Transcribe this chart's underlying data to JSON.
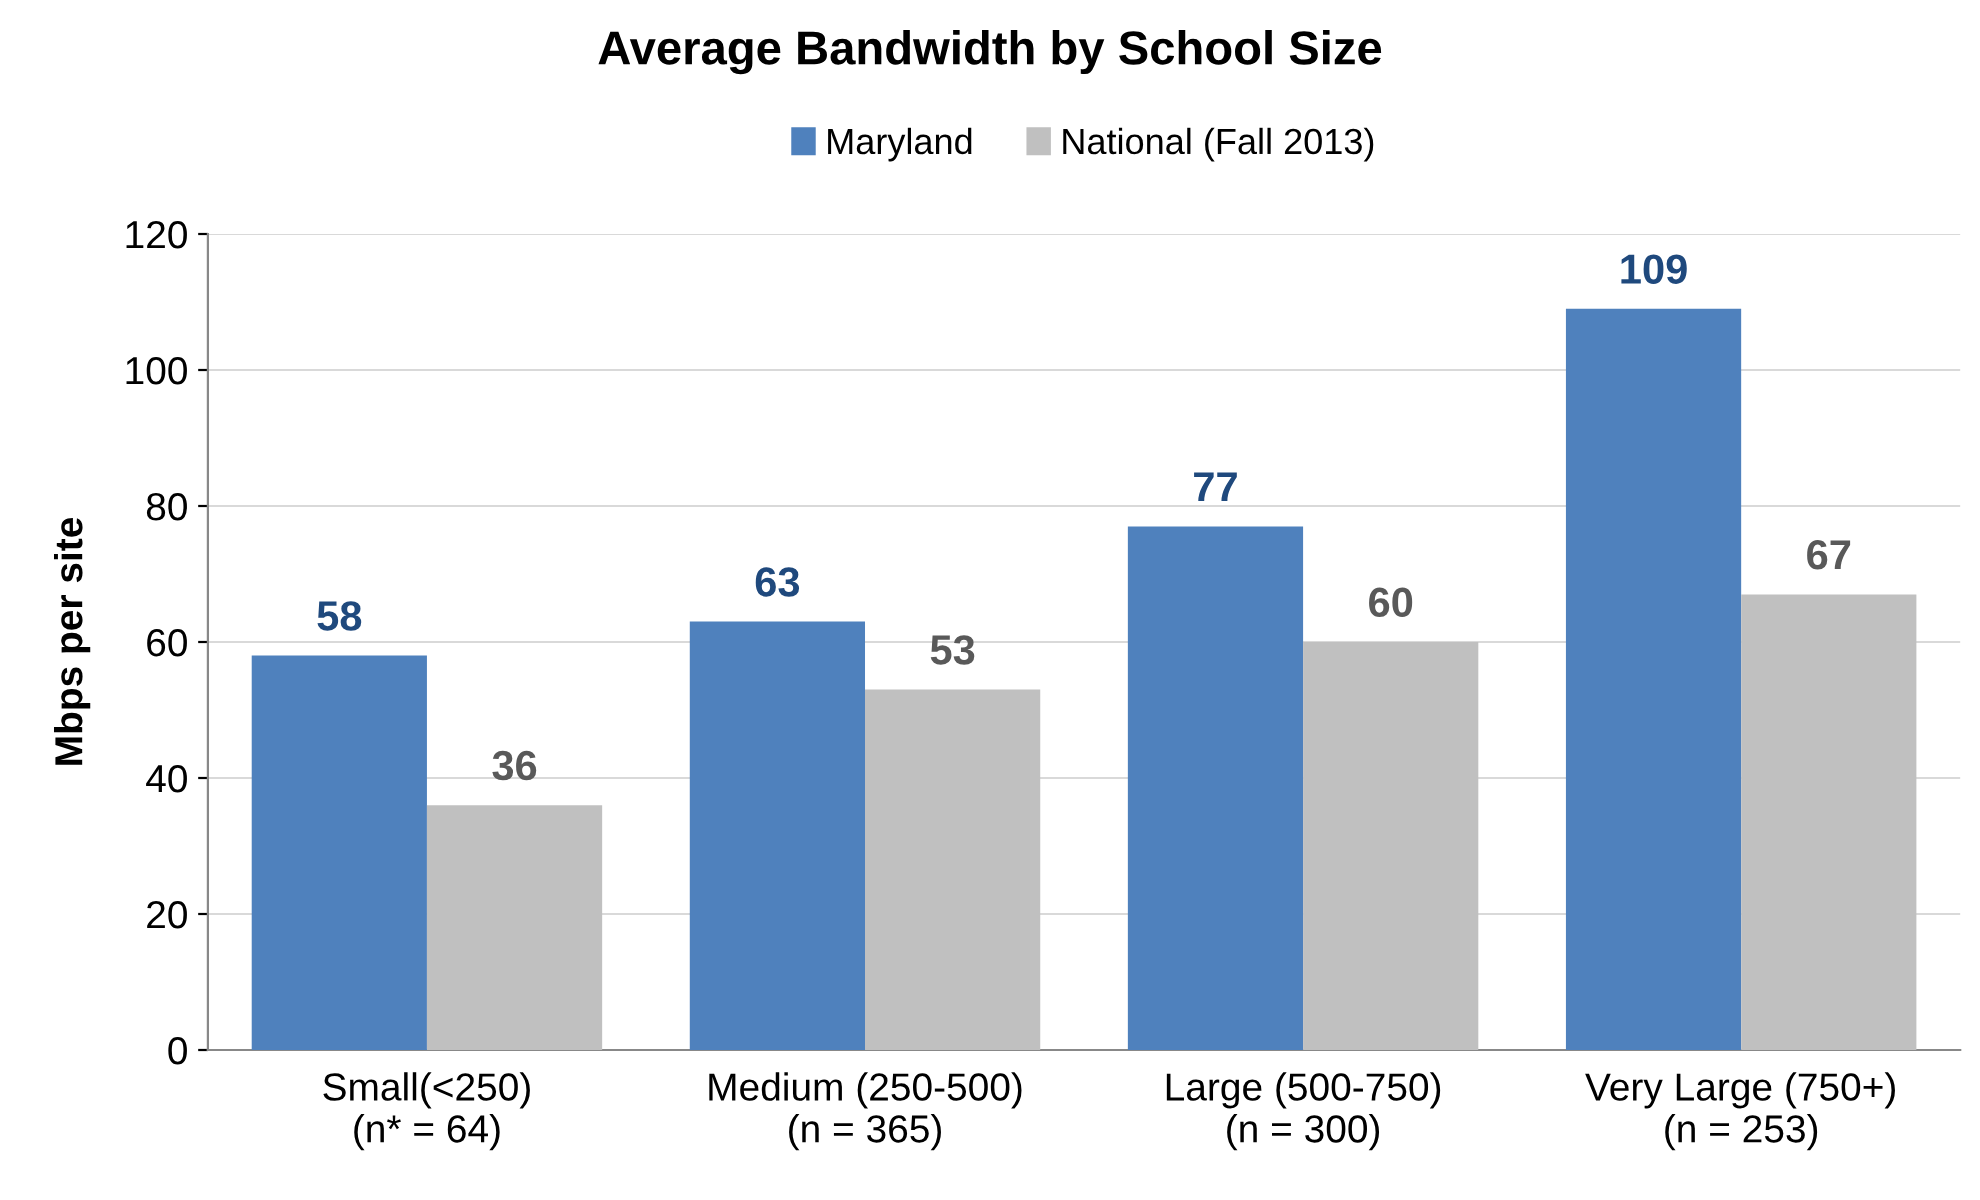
{
  "chart_data": {
    "type": "bar",
    "title": "Average Bandwidth by School Size",
    "ylabel": "Mbps per site",
    "categories": [
      "Small(<250)\n(n* = 64)",
      "Medium (250-500)\n(n = 365)",
      "Large (500-750)\n(n = 300)",
      "Very Large (750+)\n(n = 253)"
    ],
    "series": [
      {
        "name": "Maryland",
        "color": "#4f81bd",
        "values": [
          58,
          63,
          77,
          109
        ]
      },
      {
        "name": "National (Fall 2013)",
        "color": "#c0c0c0",
        "values": [
          36,
          53,
          60,
          67
        ]
      }
    ],
    "ylim": [
      0,
      120
    ],
    "yticks": [
      0,
      20,
      40,
      60,
      80,
      100,
      120
    ],
    "grid": "y",
    "legend": "top",
    "data_labels": true
  }
}
